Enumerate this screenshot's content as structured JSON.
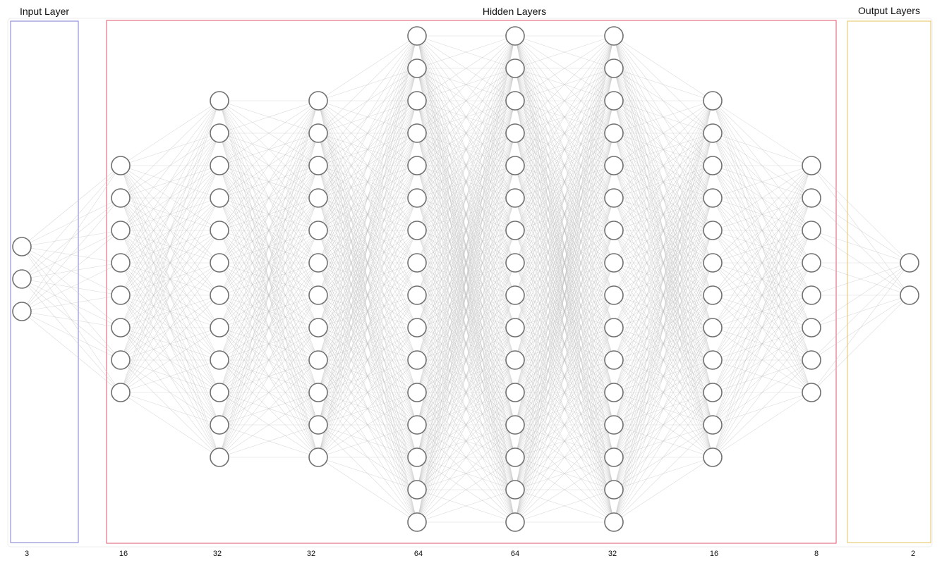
{
  "groups": [
    {
      "id": "input",
      "title": "Input Layer",
      "color": "#7b7bd0"
    },
    {
      "id": "hidden",
      "title": "Hidden Layers",
      "color": "#e0556e"
    },
    {
      "id": "output",
      "title": "Output Layers",
      "color": "#e2c35c"
    }
  ],
  "layers": [
    {
      "size": "3",
      "shown_nodes": 3,
      "group": "input"
    },
    {
      "size": "16",
      "shown_nodes": 8,
      "group": "hidden"
    },
    {
      "size": "32",
      "shown_nodes": 12,
      "group": "hidden"
    },
    {
      "size": "32",
      "shown_nodes": 12,
      "group": "hidden"
    },
    {
      "size": "64",
      "shown_nodes": 16,
      "group": "hidden"
    },
    {
      "size": "64",
      "shown_nodes": 16,
      "group": "hidden"
    },
    {
      "size": "32",
      "shown_nodes": 16,
      "group": "hidden"
    },
    {
      "size": "16",
      "shown_nodes": 12,
      "group": "hidden"
    },
    {
      "size": "8",
      "shown_nodes": 8,
      "group": "output"
    },
    {
      "size": "2",
      "shown_nodes": 2,
      "group": "output"
    }
  ]
}
